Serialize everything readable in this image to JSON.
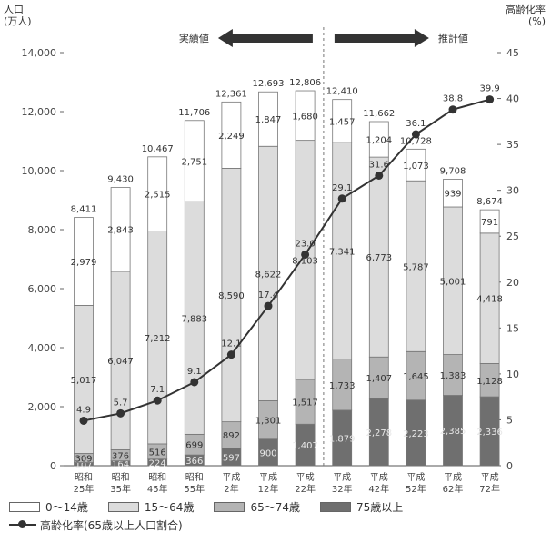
{
  "left_axis_title": "人口\n(万人)",
  "right_axis_title": "高齢化率\n(%)",
  "actual_label": "実績値",
  "projected_label": "推計値",
  "colors": {
    "age_0_14": "#ffffff",
    "age_15_64": "#dcdcdc",
    "age_65_74": "#b4b4b4",
    "age_75_plus": "#6f6f6f",
    "line": "#333333",
    "arrow": "#333333"
  },
  "legend": {
    "age_0_14": "0～14歳",
    "age_15_64": "15～64歳",
    "age_65_74": "65～74歳",
    "age_75_plus": "75歳以上",
    "aging_rate": "高齢化率(65歳以上人口割合)"
  },
  "chart_data": {
    "type": "bar",
    "stacked": true,
    "categories": [
      [
        "昭和",
        "25年"
      ],
      [
        "昭和",
        "35年"
      ],
      [
        "昭和",
        "45年"
      ],
      [
        "昭和",
        "55年"
      ],
      [
        "平成",
        "2年"
      ],
      [
        "平成",
        "12年"
      ],
      [
        "平成",
        "22年"
      ],
      [
        "平成",
        "32年"
      ],
      [
        "平成",
        "42年"
      ],
      [
        "平成",
        "52年"
      ],
      [
        "平成",
        "62年"
      ],
      [
        "平成",
        "72年"
      ]
    ],
    "totals": [
      "8,411",
      "9,430",
      "10,467",
      "11,706",
      "12,361",
      "12,693",
      "12,806",
      "12,410",
      "11,662",
      "10,728",
      "9,708",
      "8,674"
    ],
    "series": [
      {
        "name": "75歳以上",
        "key": "age_75_plus",
        "values": [
          107,
          164,
          224,
          366,
          597,
          900,
          1407,
          1879,
          2278,
          2223,
          2385,
          2336
        ],
        "labels": [
          "107",
          "164",
          "224",
          "366",
          "597",
          "900",
          "1,407",
          "1,879",
          "2,278",
          "2,223",
          "2,385",
          "2,336"
        ]
      },
      {
        "name": "65～74歳",
        "key": "age_65_74",
        "values": [
          309,
          376,
          516,
          699,
          892,
          1301,
          1517,
          1733,
          1407,
          1645,
          1383,
          1128
        ],
        "labels": [
          "309",
          "376",
          "516",
          "699",
          "892",
          "1,301",
          "1,517",
          "1,733",
          "1,407",
          "1,645",
          "1,383",
          "1,128"
        ]
      },
      {
        "name": "15～64歳",
        "key": "age_15_64",
        "values": [
          5017,
          6047,
          7212,
          7883,
          8590,
          8622,
          8103,
          7341,
          6773,
          5787,
          5001,
          4418
        ],
        "labels": [
          "5,017",
          "6,047",
          "7,212",
          "7,883",
          "8,590",
          "8,622",
          "8,103",
          "7,341",
          "6,773",
          "5,787",
          "5,001",
          "4,418"
        ]
      },
      {
        "name": "0～14歳",
        "key": "age_0_14",
        "values": [
          2979,
          2843,
          2515,
          2751,
          2249,
          1847,
          1680,
          1457,
          1204,
          1073,
          939,
          791
        ],
        "labels": [
          "2,979",
          "2,843",
          "2,515",
          "2,751",
          "2,249",
          "1,847",
          "1,680",
          "1,457",
          "1,204",
          "1,073",
          "939",
          "791"
        ]
      }
    ],
    "line": {
      "name": "高齢化率(65歳以上人口割合)",
      "values": [
        4.9,
        5.7,
        7.1,
        9.1,
        12.1,
        17.4,
        23.0,
        29.1,
        31.6,
        36.1,
        38.8,
        39.9
      ],
      "labels": [
        "4.9",
        "5.7",
        "7.1",
        "9.1",
        "12.1",
        "17.4",
        "23.0",
        "29.1",
        "31.6",
        "36.1",
        "38.8",
        "39.9"
      ]
    },
    "yleft_ticks": [
      "0",
      "2,000",
      "4,000",
      "6,000",
      "8,000",
      "10,000",
      "12,000",
      "14,000"
    ],
    "yleft_lim": [
      0,
      14000
    ],
    "yright_ticks": [
      "0",
      "5",
      "10",
      "15",
      "20",
      "25",
      "30",
      "35",
      "40",
      "45"
    ],
    "yright_lim": [
      0,
      45
    ],
    "actual_count": 7
  }
}
